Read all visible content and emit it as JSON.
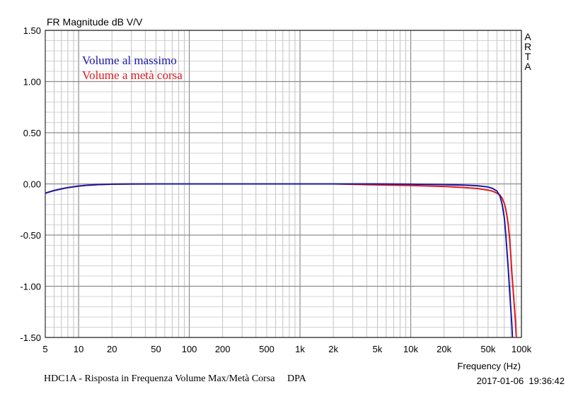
{
  "chart_data": {
    "type": "line",
    "title": "FR Magnitude dB V/V",
    "xlabel": "Frequency (Hz)",
    "ylabel": "",
    "xscale": "log",
    "xlim": [
      5,
      100000
    ],
    "ylim": [
      -1.5,
      1.5
    ],
    "grid": true,
    "y_ticks": [
      {
        "value": 1.5,
        "label": "1.50"
      },
      {
        "value": 1.0,
        "label": "1.00"
      },
      {
        "value": 0.5,
        "label": "0.50"
      },
      {
        "value": 0.0,
        "label": "0.00"
      },
      {
        "value": -0.5,
        "label": "-0.50"
      },
      {
        "value": -1.0,
        "label": "-1.00"
      },
      {
        "value": -1.5,
        "label": "-1.50"
      }
    ],
    "x_ticks": [
      {
        "value": 5,
        "label": "5"
      },
      {
        "value": 10,
        "label": "10"
      },
      {
        "value": 20,
        "label": "20"
      },
      {
        "value": 50,
        "label": "50"
      },
      {
        "value": 100,
        "label": "100"
      },
      {
        "value": 200,
        "label": "200"
      },
      {
        "value": 500,
        "label": "500"
      },
      {
        "value": 1000,
        "label": "1k"
      },
      {
        "value": 2000,
        "label": "2k"
      },
      {
        "value": 5000,
        "label": "5k"
      },
      {
        "value": 10000,
        "label": "10k"
      },
      {
        "value": 20000,
        "label": "20k"
      },
      {
        "value": 50000,
        "label": "50k"
      },
      {
        "value": 100000,
        "label": "100k"
      }
    ],
    "legend_position": "top-left",
    "series": [
      {
        "name": "Volume al massimo",
        "color": "#1a1aa6",
        "x": [
          5,
          6,
          7,
          8,
          10,
          12,
          15,
          20,
          30,
          50,
          100,
          200,
          500,
          1000,
          2000,
          5000,
          10000,
          20000,
          30000,
          40000,
          50000,
          55000,
          60000,
          64000,
          67000,
          70000,
          72000,
          74000,
          76000,
          78000,
          80000,
          82000,
          83000
        ],
        "y": [
          -0.09,
          -0.065,
          -0.048,
          -0.036,
          -0.021,
          -0.013,
          -0.007,
          -0.003,
          -0.001,
          0.0,
          0.0,
          0.0,
          0.0,
          0.0,
          0.0,
          0.0,
          -0.003,
          -0.007,
          -0.012,
          -0.018,
          -0.03,
          -0.045,
          -0.07,
          -0.12,
          -0.2,
          -0.33,
          -0.48,
          -0.65,
          -0.83,
          -1.02,
          -1.2,
          -1.38,
          -1.5
        ]
      },
      {
        "name": "Volume a metà corsa",
        "color": "#e0181c",
        "x": [
          5,
          6,
          7,
          8,
          10,
          12,
          15,
          20,
          30,
          50,
          100,
          200,
          500,
          1000,
          2000,
          5000,
          10000,
          20000,
          30000,
          40000,
          50000,
          55000,
          60000,
          64000,
          67000,
          70000,
          72000,
          74000,
          76000,
          78000,
          80000,
          82000,
          85000,
          88000,
          90000
        ],
        "y": [
          -0.09,
          -0.065,
          -0.048,
          -0.036,
          -0.021,
          -0.013,
          -0.007,
          -0.003,
          -0.001,
          0.0,
          0.0,
          0.0,
          0.0,
          0.0,
          0.0,
          -0.01,
          -0.015,
          -0.025,
          -0.035,
          -0.045,
          -0.06,
          -0.072,
          -0.09,
          -0.11,
          -0.14,
          -0.19,
          -0.24,
          -0.31,
          -0.4,
          -0.52,
          -0.68,
          -0.87,
          -1.1,
          -1.32,
          -1.5
        ]
      }
    ]
  },
  "side_mark": [
    "A",
    "R",
    "T",
    "A"
  ],
  "footer": {
    "caption": "HDC1A - Risposta in Frequenza Volume Max/Metà Corsa     DPA",
    "timestamp": "2017-01-06  19:36:42"
  }
}
